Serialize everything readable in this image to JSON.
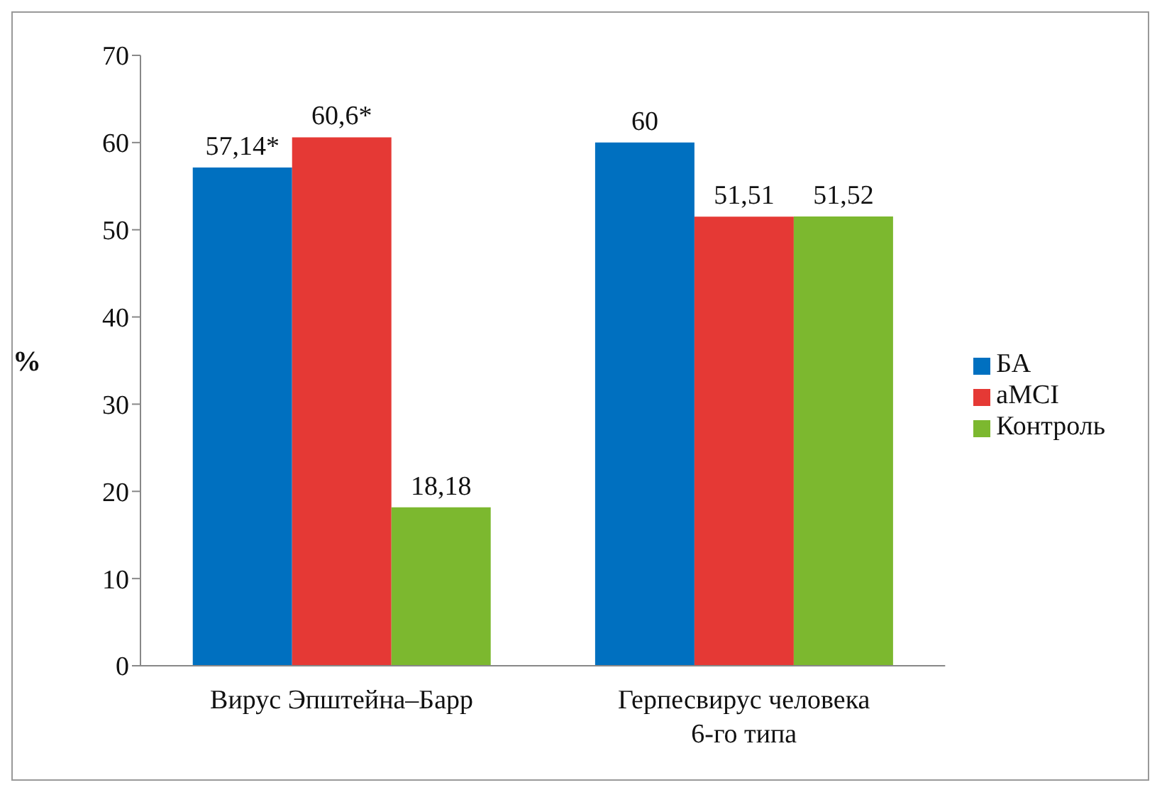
{
  "chart_data": {
    "type": "bar",
    "ylabel": "%",
    "categories": [
      "Вирус Эпштейна–Барр",
      "Герпесвирус человека 6-го типа"
    ],
    "series": [
      {
        "name": "БА",
        "color": "#0070c0",
        "values": [
          57.14,
          60
        ],
        "value_labels": [
          "57,14*",
          "60"
        ]
      },
      {
        "name": "aMCI",
        "color": "#e53935",
        "values": [
          60.6,
          51.51
        ],
        "value_labels": [
          "60,6*",
          "51,51"
        ]
      },
      {
        "name": "Контроль",
        "color": "#7cb82f",
        "values": [
          18.18,
          51.52
        ],
        "value_labels": [
          "18,18",
          "51,52"
        ]
      }
    ],
    "ylim": [
      0,
      70
    ],
    "yticks": [
      0,
      10,
      20,
      30,
      40,
      50,
      60,
      70
    ],
    "grid": false,
    "legend": "right"
  }
}
